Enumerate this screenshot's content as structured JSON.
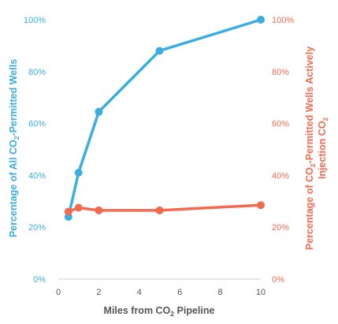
{
  "chart_data": {
    "type": "line",
    "x": [
      0.5,
      1,
      2,
      5,
      10
    ],
    "series": [
      {
        "axis": "left",
        "color": "#3aaee0",
        "values": [
          24,
          41,
          64.5,
          88,
          100
        ]
      },
      {
        "axis": "right",
        "color": "#f26b50",
        "values": [
          26,
          27.5,
          26.5,
          26.5,
          28.5
        ]
      }
    ],
    "xlabel": {
      "pre": "Miles from CO",
      "sub": "2",
      "post": " Pipeline"
    },
    "ylabel_left": {
      "pre": "Percentage of All CO",
      "sub": "2",
      "post": "-Permitted Wells"
    },
    "ylabel_right_line1": {
      "pre": "Percentage of CO",
      "sub": "2",
      "post": "-Permitted Wells Actively"
    },
    "ylabel_right_line2": {
      "pre": "Injection CO",
      "sub": "2",
      "post": ""
    },
    "xlim": [
      0,
      10
    ],
    "xticks": [
      "0",
      "2",
      "4",
      "6",
      "8",
      "10"
    ],
    "ylim": [
      0,
      100
    ],
    "yticks_left": [
      "0%",
      "20%",
      "40%",
      "60%",
      "80%",
      "100%"
    ],
    "yticks_right": [
      "0%",
      "20%",
      "40%",
      "60%",
      "80%",
      "100%"
    ],
    "grid": false,
    "legend": "none"
  }
}
